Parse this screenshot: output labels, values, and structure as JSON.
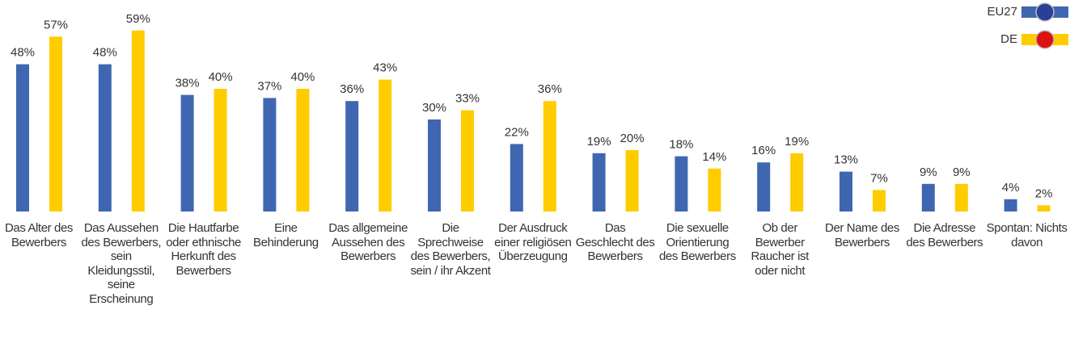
{
  "chart_data": {
    "type": "bar",
    "categories": [
      "Das Alter des Bewerbers",
      "Das Aussehen des Bewerbers, sein Kleidungsstil, seine Erscheinung",
      "Die Hautfarbe oder ethnische Herkunft des Bewerbers",
      "Eine Behinderung",
      "Das allgemeine Aussehen des Bewerbers",
      "Die Sprechweise des Bewerbers, sein / ihr Akzent",
      "Der Ausdruck einer religiösen Überzeugung",
      "Das Geschlecht des Bewerbers",
      "Die sexuelle Orientierung des Bewerbers",
      "Ob der Bewerber Raucher ist oder nicht",
      "Der Name des Bewerbers",
      "Die Adresse des Bewerbers",
      "Spontan: Nichts davon"
    ],
    "series": [
      {
        "name": "EU27",
        "color": "#3f67b1",
        "values": [
          48,
          48,
          38,
          37,
          36,
          30,
          22,
          19,
          18,
          16,
          13,
          9,
          4
        ],
        "value_labels": [
          "48%",
          "48%",
          "38%",
          "37%",
          "36%",
          "30%",
          "22%",
          "19%",
          "18%",
          "16%",
          "13%",
          "9%",
          "4%"
        ]
      },
      {
        "name": "DE",
        "color": "#ffcc00",
        "values": [
          57,
          59,
          40,
          40,
          43,
          33,
          36,
          20,
          14,
          19,
          7,
          9,
          2
        ],
        "value_labels": [
          "57%",
          "59%",
          "40%",
          "40%",
          "43%",
          "33%",
          "36%",
          "20%",
          "14%",
          "19%",
          "7%",
          "9%",
          "2%"
        ]
      }
    ],
    "legend": "top-right"
  }
}
